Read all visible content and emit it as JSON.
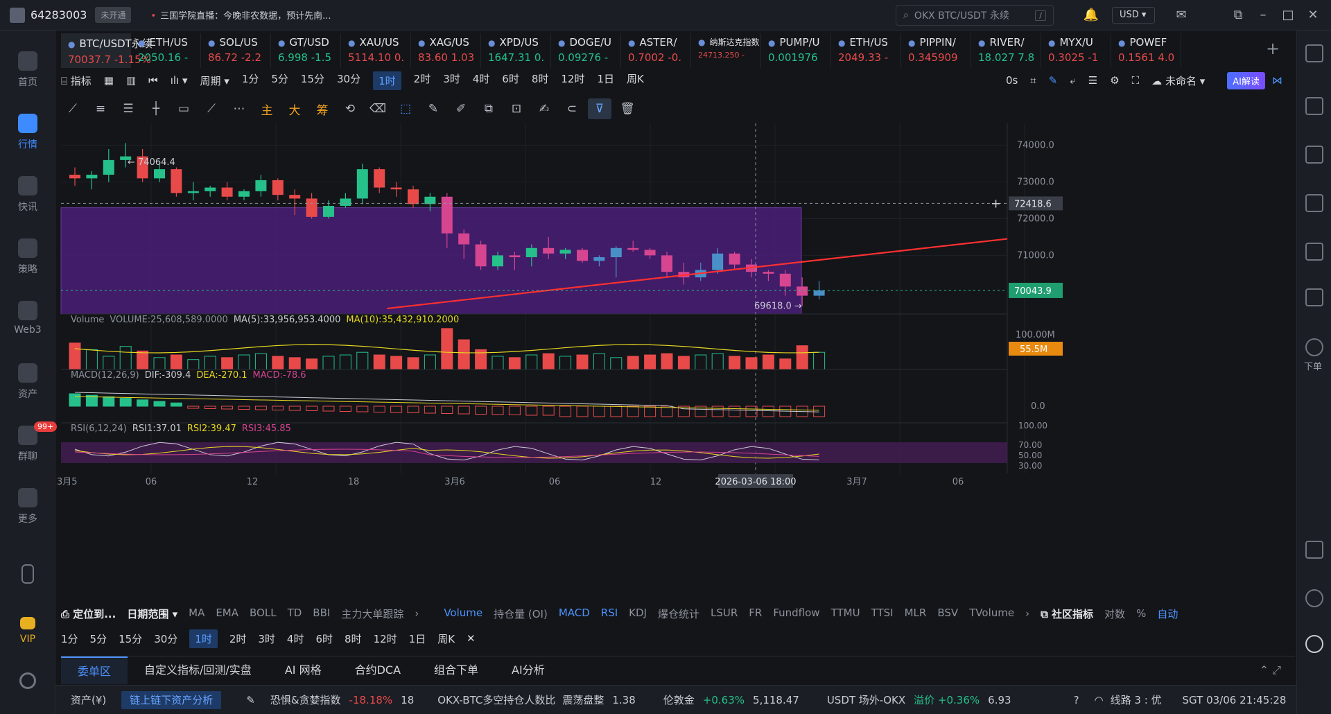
{
  "topbar": {
    "user_id": "64283003",
    "vip_status": "未开通",
    "ticker_message": "三国学院直播：今晚非农数据，预计先南...",
    "search_placeholder": "OKX BTC/USDT 永续",
    "search_shortcut": "/",
    "currency": "USD"
  },
  "sidebar": {
    "items": [
      {
        "label": "首页",
        "icon": "home-icon"
      },
      {
        "label": "行情",
        "icon": "market-icon",
        "active": true
      },
      {
        "label": "快讯",
        "icon": "news-icon"
      },
      {
        "label": "策略",
        "icon": "robot-icon"
      },
      {
        "label": "Web3",
        "icon": "web3-icon"
      },
      {
        "label": "资产",
        "icon": "wallet-icon"
      },
      {
        "label": "群聊",
        "icon": "chat-icon",
        "badge": "99+"
      },
      {
        "label": "更多",
        "icon": "grid-icon"
      }
    ],
    "vip_label": "VIP"
  },
  "tabs": [
    {
      "name": "BTC/USDT永续",
      "price": "70037.7",
      "change": "-1.15%",
      "dir": "dn",
      "active": true
    },
    {
      "name": "ETH/US",
      "price": "2050.16",
      "change": "-",
      "dir": "up"
    },
    {
      "name": "SOL/US",
      "price": "86.72",
      "change": "-2.2",
      "dir": "dn"
    },
    {
      "name": "GT/USD",
      "price": "6.998",
      "change": "-1.5",
      "dir": "up"
    },
    {
      "name": "XAU/US",
      "price": "5114.10",
      "change": "0.",
      "dir": "dn"
    },
    {
      "name": "XAG/US",
      "price": "83.60",
      "change": "1.03",
      "dir": "dn"
    },
    {
      "name": "XPD/US",
      "price": "1647.31",
      "change": "0.",
      "dir": "up"
    },
    {
      "name": "DOGE/U",
      "price": "0.09276",
      "change": "-",
      "dir": "up"
    },
    {
      "name": "ASTER/",
      "price": "0.7002",
      "change": "-0.",
      "dir": "dn"
    },
    {
      "name": "纳斯达克指数",
      "price": "24713.250",
      "change": "-",
      "dir": "dn"
    },
    {
      "name": "PUMP/U",
      "price": "0.001976",
      "change": "",
      "dir": "up"
    },
    {
      "name": "ETH/US",
      "price": "2049.33",
      "change": "-",
      "dir": "dn"
    },
    {
      "name": "PIPPIN/",
      "price": "0.345909",
      "change": "",
      "dir": "dn"
    },
    {
      "name": "RIVER/",
      "price": "18.027",
      "change": "7.8",
      "dir": "up"
    },
    {
      "name": "MYX/U",
      "price": "0.3025",
      "change": "-1",
      "dir": "dn"
    },
    {
      "name": "POWEF",
      "price": "0.1561",
      "change": "4.0",
      "dir": "dn"
    }
  ],
  "toolbar": {
    "indicator": "指标",
    "period": "周期",
    "timeframes": [
      "1分",
      "5分",
      "15分",
      "30分",
      "1时",
      "2时",
      "3时",
      "4时",
      "6时",
      "8时",
      "12时",
      "1日",
      "周K"
    ],
    "active_timeframe": "1时",
    "latency": "0s",
    "layout_name": "未命名",
    "ai_label": "AI解读"
  },
  "drawtools": [
    "主",
    "大",
    "筹"
  ],
  "chart_data": {
    "type": "candlestick",
    "symbol": "BTC/USDT永续",
    "high_marker": "74064.4",
    "low_marker": "69618.0",
    "y_ticks": [
      "74000.0",
      "73000.0",
      "72000.0",
      "71000.0"
    ],
    "ylim": [
      69400,
      74600
    ],
    "current_price": "70043.9",
    "crosshair_price": "72418.6",
    "x_ticks": [
      "3月5",
      "06",
      "12",
      "18",
      "3月6",
      "06",
      "12",
      "2026-03-06 18:00",
      "3月7",
      "06"
    ],
    "candles": [
      [
        73200,
        73400,
        72900,
        73100
      ],
      [
        73100,
        73300,
        72800,
        73200
      ],
      [
        73200,
        73900,
        73000,
        73600
      ],
      [
        73600,
        74064,
        73400,
        73700
      ],
      [
        73700,
        73900,
        73000,
        73100
      ],
      [
        73100,
        73500,
        73000,
        73350
      ],
      [
        73350,
        73400,
        72600,
        72700
      ],
      [
        72700,
        73000,
        72500,
        72750
      ],
      [
        72750,
        72900,
        72600,
        72850
      ],
      [
        72850,
        73000,
        72500,
        72600
      ],
      [
        72600,
        72800,
        72500,
        72750
      ],
      [
        72750,
        73200,
        72600,
        73050
      ],
      [
        73050,
        73100,
        72500,
        72650
      ],
      [
        72650,
        72800,
        72100,
        72550
      ],
      [
        72550,
        72700,
        72000,
        72050
      ],
      [
        72050,
        72500,
        72000,
        72350
      ],
      [
        72350,
        72700,
        72300,
        72550
      ],
      [
        72550,
        73500,
        72400,
        73350
      ],
      [
        73350,
        73400,
        72700,
        72850
      ],
      [
        72850,
        73000,
        72600,
        72800
      ],
      [
        72800,
        72900,
        72300,
        72400
      ],
      [
        72400,
        72700,
        72200,
        72600
      ],
      [
        72600,
        72700,
        71200,
        71600
      ],
      [
        71600,
        71700,
        70900,
        71300
      ],
      [
        71300,
        71400,
        70600,
        70700
      ],
      [
        70700,
        71100,
        70600,
        71000
      ],
      [
        71000,
        71100,
        70600,
        70950
      ],
      [
        70950,
        71300,
        70700,
        71200
      ],
      [
        71200,
        71500,
        70900,
        71050
      ],
      [
        71050,
        71200,
        70900,
        71150
      ],
      [
        71150,
        71200,
        70800,
        70850
      ],
      [
        70850,
        71000,
        70700,
        70950
      ],
      [
        70950,
        71250,
        70400,
        71200
      ],
      [
        71200,
        71400,
        71100,
        71150
      ],
      [
        71150,
        71200,
        70900,
        71000
      ],
      [
        71000,
        71100,
        70400,
        70550
      ],
      [
        70550,
        70800,
        70200,
        70400
      ],
      [
        70400,
        70800,
        70300,
        70600
      ],
      [
        70600,
        71200,
        70500,
        71050
      ],
      [
        71050,
        71100,
        70600,
        70750
      ],
      [
        70750,
        70900,
        70400,
        70550
      ],
      [
        70550,
        70600,
        70300,
        70500
      ],
      [
        70500,
        70600,
        69900,
        70150
      ],
      [
        70150,
        70400,
        69618,
        69900
      ],
      [
        69900,
        70300,
        69800,
        70043.9
      ]
    ],
    "volume": {
      "label": "Volume",
      "values_text": "VOLUME:25,608,589.0000",
      "ma5": "MA(5):33,956,953.4000",
      "ma10": "MA(10):35,432,910.2000",
      "axis_top": "100.00M",
      "current": "55.5M"
    },
    "macd": {
      "label": "MACD(12,26,9)",
      "dif": "DIF:-309.4",
      "dea": "DEA:-270.1",
      "macd": "MACD:-78.6",
      "axis_zero": "0.0"
    },
    "rsi": {
      "label": "RSI(6,12,24)",
      "rsi1": "RSI1:37.01",
      "rsi2": "RSI2:39.47",
      "rsi3": "RSI3:45.85",
      "axis": [
        "100.00",
        "70.00",
        "50.00",
        "30.00"
      ]
    }
  },
  "indbar": {
    "locate": "定位到...",
    "range": "日期范围",
    "items": [
      "MA",
      "EMA",
      "BOLL",
      "TD",
      "BBI",
      "主力大单跟踪"
    ],
    "sub_items": [
      "Volume",
      "持仓量 (OI)",
      "MACD",
      "RSI",
      "KDJ",
      "爆仓统计",
      "LSUR",
      "FR",
      "Fundflow",
      "TTMU",
      "TTSI",
      "MLR",
      "BSV",
      "TVolume"
    ],
    "community": "社区指标",
    "log_label": "对数",
    "pct_label": "%",
    "auto_label": "自动"
  },
  "tfbar": [
    "1分",
    "5分",
    "15分",
    "30分",
    "1时",
    "2时",
    "3时",
    "4时",
    "6时",
    "8时",
    "12时",
    "1日",
    "周K"
  ],
  "panel_tabs": [
    "委单区",
    "自定义指标/回测/实盘",
    "AI 网格",
    "合约DCA",
    "组合下单",
    "AI分析"
  ],
  "status": {
    "assets": "资产(¥)",
    "chain": "链上链下资产分析",
    "fear_label": "恐惧&贪婪指数",
    "fear_change": "-18.18%",
    "fear_value": "18",
    "ratio_label": "OKX-BTC多空持仓人数比",
    "ratio_state": "震荡盘整",
    "ratio_value": "1.38",
    "gold_label": "伦敦金",
    "gold_change": "+0.63%",
    "gold_value": "5,118.47",
    "usdt_label": "USDT 场外-OKX",
    "usdt_premium": "溢价 +0.36%",
    "usdt_value": "6.93",
    "line": "线路 3 : 优",
    "time": "SGT 03/06 21:45:28"
  },
  "colors": {
    "up": "#26c08a",
    "down": "#e84a4a",
    "accent": "#3d8bff",
    "zone": "#5a2a8a"
  }
}
